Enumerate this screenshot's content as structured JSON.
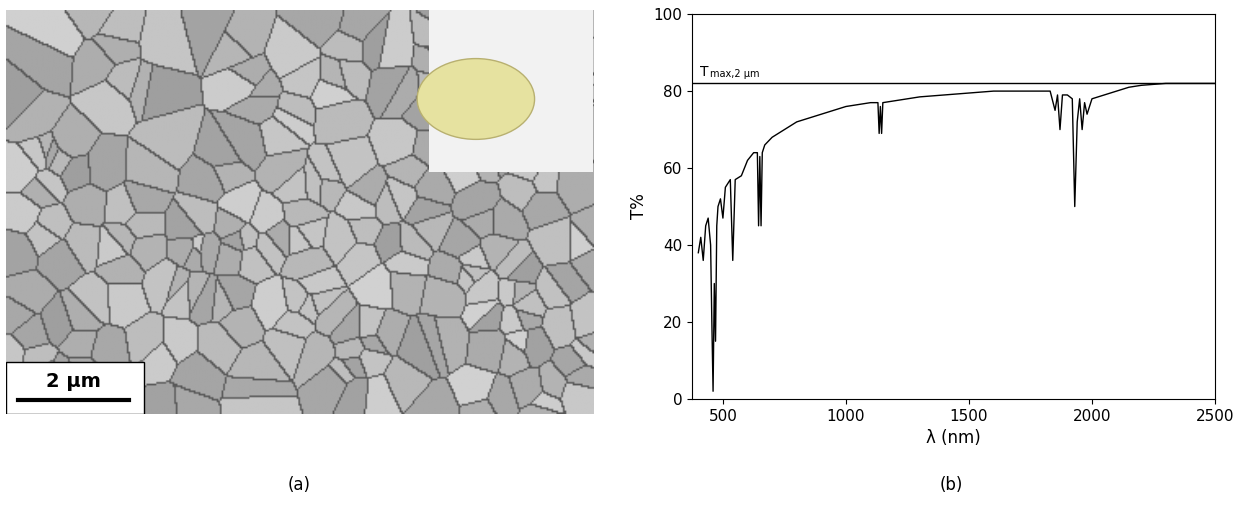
{
  "chart_data": {
    "type": "line",
    "x_label": "λ (nm)",
    "y_label": "T%",
    "x": [
      400,
      410,
      420,
      430,
      440,
      450,
      455,
      460,
      465,
      470,
      475,
      480,
      490,
      500,
      510,
      520,
      530,
      540,
      550,
      575,
      600,
      625,
      640,
      645,
      650,
      655,
      660,
      670,
      700,
      750,
      800,
      900,
      1000,
      1100,
      1130,
      1135,
      1140,
      1145,
      1150,
      1200,
      1250,
      1300,
      1400,
      1500,
      1600,
      1700,
      1800,
      1830,
      1850,
      1860,
      1870,
      1880,
      1900,
      1920,
      1930,
      1940,
      1950,
      1960,
      1970,
      1980,
      2000,
      2050,
      2100,
      2150,
      2200,
      2300,
      2400,
      2500
    ],
    "values": [
      38,
      42,
      36,
      45,
      47,
      40,
      20,
      2,
      30,
      15,
      45,
      50,
      52,
      47,
      55,
      56,
      57,
      36,
      57,
      58,
      62,
      64,
      64,
      45,
      63,
      45,
      64,
      66,
      68,
      70,
      72,
      74,
      76,
      77,
      77,
      69,
      76,
      69,
      77,
      77.5,
      78,
      78.5,
      79,
      79.5,
      80,
      80,
      80,
      80,
      75,
      79,
      70,
      79,
      79,
      78,
      50,
      72,
      78,
      70,
      77,
      74,
      78,
      79,
      80,
      81,
      81.5,
      82,
      82,
      82
    ],
    "color": "#000000",
    "xlim": [
      375,
      2500
    ],
    "ylim": [
      0,
      100
    ],
    "xticks": [
      500,
      1000,
      1500,
      2000,
      2500
    ],
    "yticks": [
      0,
      20,
      40,
      60,
      80,
      100
    ],
    "reference_line": {
      "value": 82,
      "label": "T",
      "label_subscript": "max,2 µm",
      "color": "#000000"
    }
  },
  "micrograph": {
    "scale_bar": "2 µm"
  },
  "panel_labels": [
    "(a)",
    "(b)"
  ]
}
